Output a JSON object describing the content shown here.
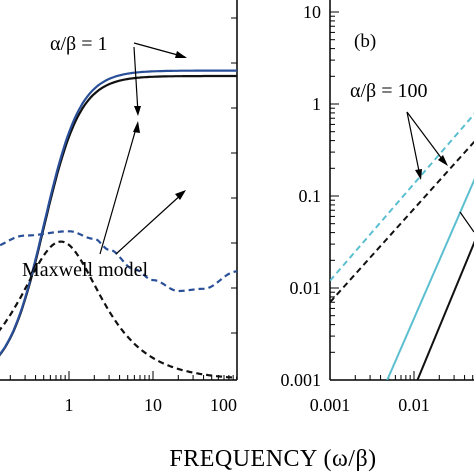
{
  "figure": {
    "xlabel": "FREQUENCY (ω/β)"
  },
  "chart_data": [
    {
      "id": "left",
      "type": "line",
      "xscale": "log",
      "xlim": [
        0.01,
        100
      ],
      "ylim": [
        0,
        3.5
      ],
      "x_ticks": [
        {
          "value": 1,
          "label": "1"
        },
        {
          "value": 10,
          "label": "10"
        },
        {
          "value": 100,
          "label": "100"
        }
      ],
      "y_ticks": [],
      "annotations": [
        {
          "text": "α/β = 1",
          "role": "ratio-label"
        },
        {
          "text": "Maxwell model",
          "role": "model-label"
        }
      ],
      "series": [
        {
          "style": "solid-black",
          "color": "#111111",
          "dash": "",
          "kind": "storage",
          "tau": 0.5,
          "amp": 2.8
        },
        {
          "style": "solid-blue",
          "color": "#2a4f99",
          "dash": "",
          "kind": "storage",
          "tau": 0.5,
          "amp": 2.85
        },
        {
          "style": "dashed-black",
          "color": "#111111",
          "dash": "6,4",
          "kind": "maxwell-loss",
          "tau": 0.8,
          "amp": 2.55
        },
        {
          "style": "dashed-blue",
          "color": "#2a4f99",
          "dash": "6,4",
          "kind": "two-peak-loss",
          "points": [
            [
              0.01,
              0.85
            ],
            [
              0.03,
              1.05
            ],
            [
              0.1,
              1.2
            ],
            [
              0.3,
              1.33
            ],
            [
              1,
              1.37
            ],
            [
              2,
              1.3
            ],
            [
              3,
              1.2
            ],
            [
              6,
              1.02
            ],
            [
              10,
              0.92
            ],
            [
              20,
              0.82
            ],
            [
              40,
              0.84
            ],
            [
              100,
              1.0
            ]
          ]
        }
      ]
    },
    {
      "id": "right",
      "type": "line",
      "panel_label": "(b)",
      "xscale": "log",
      "yscale": "log",
      "xlim": [
        0.001,
        0.1
      ],
      "ylim": [
        0.001,
        10
      ],
      "x_ticks": [
        {
          "value": 0.001,
          "label": "0.001"
        },
        {
          "value": 0.01,
          "label": "0.01"
        }
      ],
      "y_ticks": [
        {
          "value": 10,
          "label": "10"
        },
        {
          "value": 1,
          "label": "1"
        },
        {
          "value": 0.1,
          "label": "0.1"
        },
        {
          "value": 0.01,
          "label": "0.01"
        },
        {
          "value": 0.001,
          "label": "0.001"
        }
      ],
      "annotations": [
        {
          "text": "α/β = 100",
          "role": "ratio-label"
        }
      ],
      "series": [
        {
          "style": "dashed-cyan",
          "color": "#5bbfd0",
          "dash": "6,4",
          "x": [
            0.001,
            0.06
          ],
          "y": [
            0.012,
            0.9
          ]
        },
        {
          "style": "dashed-black",
          "color": "#111111",
          "dash": "6,4",
          "x": [
            0.001,
            0.08
          ],
          "y": [
            0.007,
            0.6
          ]
        },
        {
          "style": "solid-cyan",
          "color": "#5bbfd0",
          "dash": "",
          "x": [
            0.0048,
            0.06
          ],
          "y": [
            0.001,
            0.2
          ]
        },
        {
          "style": "solid-black",
          "color": "#111111",
          "dash": "",
          "x": [
            0.011,
            0.08
          ],
          "y": [
            0.001,
            0.08
          ]
        }
      ]
    }
  ]
}
